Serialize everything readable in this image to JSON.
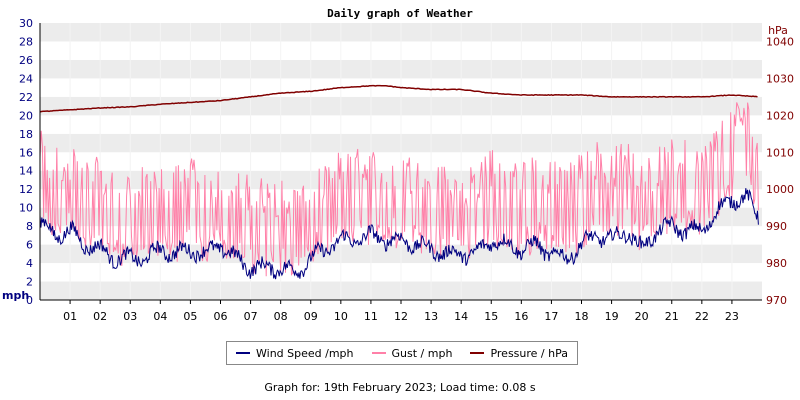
{
  "chart_data": {
    "type": "line",
    "title": "Daily graph of Weather",
    "left_axis": {
      "unit_label": "mph",
      "ylim": [
        0,
        30
      ],
      "ticks": [
        0,
        2,
        4,
        6,
        8,
        10,
        12,
        14,
        16,
        18,
        20,
        22,
        24,
        26,
        28,
        30
      ],
      "color": "#000080"
    },
    "right_axis": {
      "unit_label": "hPa",
      "ylim": [
        970,
        1045
      ],
      "ticks": [
        970,
        980,
        990,
        1000,
        1010,
        1020,
        1030,
        1040
      ],
      "color": "#800000"
    },
    "x": {
      "hours": [
        "01",
        "02",
        "03",
        "04",
        "05",
        "06",
        "07",
        "08",
        "09",
        "10",
        "11",
        "12",
        "13",
        "14",
        "15",
        "16",
        "17",
        "18",
        "19",
        "20",
        "21",
        "22",
        "23"
      ],
      "range": [
        0,
        24
      ]
    },
    "grid": "horizontal-bands",
    "series": [
      {
        "name": "Wind Speed /mph",
        "axis": "left",
        "color": "#000080",
        "x": [
          0,
          0.5,
          1,
          1.5,
          2,
          2.5,
          3,
          3.5,
          4,
          4.5,
          5,
          5.5,
          6,
          6.5,
          7,
          7.5,
          8,
          8.5,
          9,
          9.5,
          10,
          10.5,
          11,
          11.5,
          12,
          12.5,
          13,
          13.5,
          14,
          14.5,
          15,
          15.5,
          16,
          16.5,
          17,
          17.5,
          18,
          18.5,
          19,
          19.5,
          20,
          20.5,
          21,
          21.5,
          22,
          22.5,
          23,
          23.5,
          23.9
        ],
        "values": [
          8.5,
          7,
          7.5,
          6,
          5.5,
          4.5,
          4.5,
          4.5,
          5.5,
          5,
          5.5,
          5,
          6,
          4.5,
          3.5,
          3.5,
          3.5,
          3,
          4.5,
          5.5,
          6.5,
          6.5,
          7,
          6.5,
          6.5,
          6,
          5.5,
          5,
          5,
          5,
          6.5,
          6,
          5.5,
          6,
          5,
          4.5,
          6,
          7,
          6.5,
          7.5,
          5.5,
          7.5,
          8,
          7.5,
          7.5,
          9.5,
          11,
          11,
          9
        ]
      },
      {
        "name": "Gust / mph",
        "axis": "left",
        "color": "#ff80a8",
        "x": [
          0,
          0.5,
          1,
          1.5,
          2,
          2.5,
          3,
          3.5,
          4,
          4.5,
          5,
          5.5,
          6,
          6.5,
          7,
          7.5,
          8,
          8.5,
          9,
          9.5,
          10,
          10.5,
          11,
          11.5,
          12,
          12.5,
          13,
          13.5,
          14,
          14.5,
          15,
          15.5,
          16,
          16.5,
          17,
          17.5,
          18,
          18.5,
          19,
          19.5,
          20,
          20.5,
          21,
          21.5,
          22,
          22.5,
          23,
          23.5,
          23.9
        ],
        "values": [
          14,
          12,
          13,
          11,
          11,
          10,
          10,
          10,
          11,
          11,
          11,
          10,
          11,
          10,
          9,
          9,
          9,
          8,
          10,
          11,
          12,
          12,
          12,
          12,
          12,
          11,
          11,
          10,
          10,
          10,
          12,
          12,
          11,
          12,
          11,
          10,
          12,
          13,
          12,
          13,
          11,
          12,
          13,
          13,
          13,
          15,
          17,
          18,
          14
        ]
      },
      {
        "name": "Pressure / hPa",
        "axis": "right",
        "color": "#800000",
        "x": [
          0,
          1,
          2,
          3,
          4,
          5,
          6,
          7,
          8,
          9,
          10,
          11,
          11.5,
          12,
          13,
          14,
          15,
          16,
          17,
          18,
          19,
          20,
          21,
          22,
          23,
          23.9
        ],
        "values": [
          1021,
          1021.5,
          1022,
          1022.3,
          1023,
          1023.5,
          1024,
          1025,
          1026,
          1026.5,
          1027.5,
          1028,
          1028,
          1027.5,
          1027,
          1027,
          1026,
          1025.5,
          1025.5,
          1025.5,
          1025,
          1025,
          1025,
          1025,
          1025.5,
          1025
        ]
      }
    ]
  },
  "footer_text": "Graph for: 19th February 2023; Load time: 0.08 s"
}
